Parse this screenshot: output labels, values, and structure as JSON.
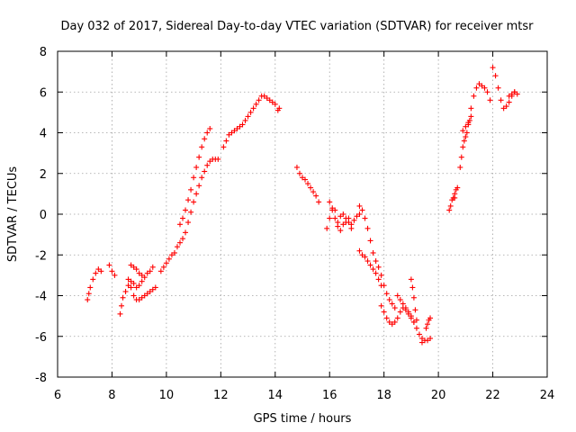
{
  "chart_data": {
    "type": "scatter",
    "title": "Day 032 of 2017, Sidereal Day-to-day VTEC variation (SDTVAR) for receiver mtsr",
    "xlabel": "GPS time / hours",
    "ylabel": "SDTVAR / TECUs",
    "xlim": [
      6,
      24
    ],
    "ylim": [
      -8,
      8
    ],
    "xticks": [
      6,
      8,
      10,
      12,
      14,
      16,
      18,
      20,
      22,
      24
    ],
    "yticks": [
      -8,
      -6,
      -4,
      -2,
      0,
      2,
      4,
      6,
      8
    ],
    "xtick_labels": [
      "6",
      "8",
      "10",
      "12",
      "14",
      "16",
      "18",
      "20",
      "22",
      "24"
    ],
    "ytick_labels": [
      "-8",
      "-6",
      "-4",
      "-2",
      "0",
      "2",
      "4",
      "6",
      "8"
    ],
    "grid": true,
    "marker": "plus",
    "color": "#ff0000",
    "series": [
      {
        "name": "track-1",
        "x": [
          7.1,
          7.15,
          7.2,
          7.3,
          7.4,
          7.5,
          7.6
        ],
        "y": [
          -4.2,
          -3.9,
          -3.6,
          -3.2,
          -2.9,
          -2.7,
          -2.8
        ]
      },
      {
        "name": "track-2",
        "x": [
          7.9,
          8.0,
          8.1
        ],
        "y": [
          -2.5,
          -2.8,
          -3.0
        ]
      },
      {
        "name": "track-3",
        "x": [
          8.3,
          8.35,
          8.4,
          8.5,
          8.6,
          8.7,
          8.8,
          8.9,
          9.0,
          9.1,
          9.2,
          9.3,
          9.4,
          9.5
        ],
        "y": [
          -4.9,
          -4.5,
          -4.1,
          -3.8,
          -3.5,
          -3.3,
          -3.4,
          -3.6,
          -3.5,
          -3.3,
          -3.1,
          -2.9,
          -2.8,
          -2.6
        ]
      },
      {
        "name": "track-4",
        "x": [
          8.6,
          8.7,
          8.8,
          8.9,
          9.0,
          9.1,
          9.2,
          9.3,
          9.4,
          9.5,
          9.6
        ],
        "y": [
          -3.2,
          -3.6,
          -4.0,
          -4.2,
          -4.2,
          -4.1,
          -4.0,
          -3.9,
          -3.8,
          -3.7,
          -3.6
        ]
      },
      {
        "name": "track-5",
        "x": [
          8.7,
          8.8,
          8.9,
          9.0,
          9.1
        ],
        "y": [
          -2.5,
          -2.6,
          -2.7,
          -2.9,
          -3.0
        ]
      },
      {
        "name": "track-6",
        "x": [
          9.8,
          9.9,
          10.0,
          10.1,
          10.2,
          10.3
        ],
        "y": [
          -2.8,
          -2.6,
          -2.4,
          -2.2,
          -2.0,
          -1.9
        ]
      },
      {
        "name": "track-7",
        "x": [
          10.5,
          10.6,
          10.7,
          10.8,
          10.9,
          11.0,
          11.1,
          11.2,
          11.3,
          11.4,
          11.5,
          11.6
        ],
        "y": [
          -0.5,
          -0.2,
          0.2,
          0.7,
          1.2,
          1.8,
          2.3,
          2.8,
          3.3,
          3.7,
          4.0,
          4.2
        ]
      },
      {
        "name": "track-8",
        "x": [
          10.4,
          10.5,
          10.6,
          10.7,
          10.8,
          10.9,
          11.0,
          11.1,
          11.2,
          11.3,
          11.4,
          11.5,
          11.6,
          11.7,
          11.8,
          11.9
        ],
        "y": [
          -1.6,
          -1.4,
          -1.2,
          -0.9,
          -0.4,
          0.1,
          0.6,
          1.0,
          1.4,
          1.8,
          2.1,
          2.4,
          2.6,
          2.7,
          2.7,
          2.7
        ]
      },
      {
        "name": "track-9",
        "x": [
          12.1,
          12.2,
          12.3,
          12.4,
          12.5,
          12.6,
          12.7,
          12.8,
          12.9,
          13.0,
          13.1,
          13.2,
          13.3,
          13.4,
          13.5,
          13.6,
          13.7,
          13.8,
          13.9,
          14.0
        ],
        "y": [
          3.3,
          3.6,
          3.9,
          4.0,
          4.1,
          4.2,
          4.3,
          4.4,
          4.6,
          4.8,
          5.0,
          5.2,
          5.4,
          5.6,
          5.8,
          5.8,
          5.7,
          5.6,
          5.5,
          5.4
        ]
      },
      {
        "name": "track-10",
        "x": [
          14.1,
          14.15
        ],
        "y": [
          5.1,
          5.2
        ]
      },
      {
        "name": "track-11",
        "x": [
          14.8,
          14.9,
          15.0,
          15.1,
          15.2,
          15.3,
          15.4,
          15.5,
          15.6
        ],
        "y": [
          2.3,
          2.0,
          1.8,
          1.7,
          1.5,
          1.3,
          1.1,
          0.9,
          0.6
        ]
      },
      {
        "name": "track-12",
        "x": [
          15.9,
          16.0,
          16.1,
          16.2,
          16.3,
          16.4,
          16.5,
          16.6,
          16.7,
          16.8,
          16.9,
          17.0,
          17.1
        ],
        "y": [
          -0.7,
          -0.2,
          0.3,
          0.2,
          -0.4,
          -0.1,
          0.0,
          -0.4,
          -0.2,
          -0.5,
          -0.3,
          -0.1,
          0.0
        ]
      },
      {
        "name": "track-13",
        "x": [
          16.0,
          16.1,
          16.2,
          16.3,
          16.4,
          16.5,
          16.6,
          16.7,
          16.8
        ],
        "y": [
          0.6,
          0.2,
          -0.2,
          -0.6,
          -0.8,
          -0.5,
          -0.2,
          -0.4,
          -0.7
        ]
      },
      {
        "name": "track-14",
        "x": [
          17.1,
          17.2,
          17.3,
          17.4,
          17.5,
          17.6,
          17.7,
          17.8,
          17.9,
          18.0,
          18.1,
          18.2,
          18.3,
          18.4
        ],
        "y": [
          0.4,
          0.2,
          -0.2,
          -0.7,
          -1.3,
          -1.9,
          -2.3,
          -2.6,
          -3.0,
          -3.5,
          -3.9,
          -4.2,
          -4.4,
          -4.6
        ]
      },
      {
        "name": "track-15",
        "x": [
          17.1,
          17.2,
          17.3,
          17.4,
          17.5,
          17.6,
          17.7,
          17.8,
          17.9
        ],
        "y": [
          -1.8,
          -2.0,
          -2.1,
          -2.3,
          -2.5,
          -2.7,
          -2.9,
          -3.2,
          -3.5
        ]
      },
      {
        "name": "track-16",
        "x": [
          17.9,
          18.0,
          18.1,
          18.2,
          18.3,
          18.4,
          18.5,
          18.6,
          18.7,
          18.8,
          18.9,
          19.0,
          19.1
        ],
        "y": [
          -4.5,
          -4.8,
          -5.1,
          -5.3,
          -5.4,
          -5.3,
          -5.1,
          -4.8,
          -4.6,
          -4.7,
          -4.9,
          -5.1,
          -5.3
        ]
      },
      {
        "name": "track-17",
        "x": [
          18.5,
          18.6,
          18.7,
          18.8,
          18.9,
          19.0,
          19.1,
          19.2,
          19.3,
          19.4
        ],
        "y": [
          -4.0,
          -4.2,
          -4.4,
          -4.6,
          -4.8,
          -5.0,
          -5.3,
          -5.6,
          -5.9,
          -6.1
        ]
      },
      {
        "name": "track-18",
        "x": [
          19.0,
          19.05,
          19.1,
          19.15,
          19.2
        ],
        "y": [
          -3.2,
          -3.6,
          -4.1,
          -4.7,
          -5.2
        ]
      },
      {
        "name": "track-19",
        "x": [
          19.4,
          19.5,
          19.6,
          19.7
        ],
        "y": [
          -6.3,
          -6.2,
          -6.2,
          -6.1
        ]
      },
      {
        "name": "track-20",
        "x": [
          19.55,
          19.6,
          19.65,
          19.7
        ],
        "y": [
          -5.6,
          -5.4,
          -5.2,
          -5.1
        ]
      },
      {
        "name": "track-21",
        "x": [
          20.4,
          20.45,
          20.5,
          20.55,
          20.6
        ],
        "y": [
          0.2,
          0.4,
          0.7,
          0.8,
          0.8
        ]
      },
      {
        "name": "track-22",
        "x": [
          20.6,
          20.65,
          20.7
        ],
        "y": [
          1.0,
          1.2,
          1.3
        ]
      },
      {
        "name": "track-23",
        "x": [
          20.8,
          20.85,
          20.9,
          20.95,
          21.0,
          21.05,
          21.1,
          21.15,
          21.2
        ],
        "y": [
          2.3,
          2.8,
          3.3,
          3.6,
          3.8,
          4.0,
          4.4,
          4.6,
          4.8
        ]
      },
      {
        "name": "track-24",
        "x": [
          20.9,
          21.0,
          21.1,
          21.2,
          21.3,
          21.4,
          21.5,
          21.6,
          21.7,
          21.8,
          21.9
        ],
        "y": [
          4.1,
          4.3,
          4.5,
          5.2,
          5.8,
          6.2,
          6.4,
          6.3,
          6.2,
          6.0,
          5.6
        ]
      },
      {
        "name": "track-25",
        "x": [
          22.0,
          22.1,
          22.2,
          22.3,
          22.4,
          22.5,
          22.6,
          22.7,
          22.8
        ],
        "y": [
          7.2,
          6.8,
          6.2,
          5.6,
          5.2,
          5.3,
          5.5,
          5.8,
          6.0
        ]
      },
      {
        "name": "track-26",
        "x": [
          22.6,
          22.7,
          22.8,
          22.9
        ],
        "y": [
          5.8,
          5.9,
          6.0,
          5.9
        ]
      }
    ]
  }
}
